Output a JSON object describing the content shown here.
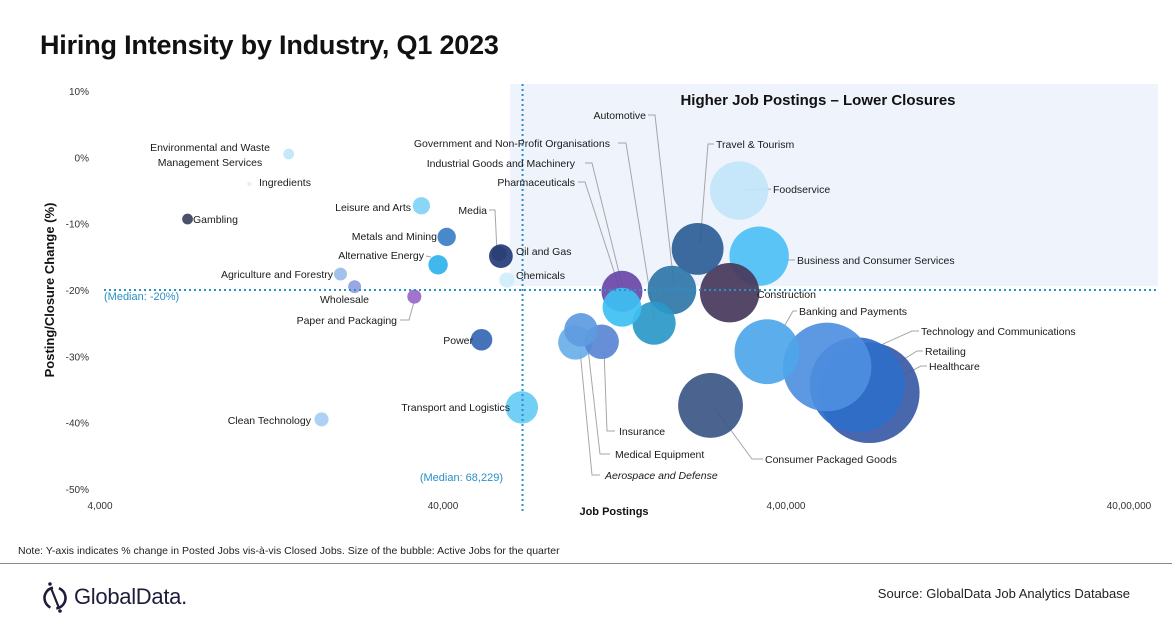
{
  "header": {
    "title": "Hiring Intensity by Industry, Q1 2023"
  },
  "footer": {
    "note": "Note: Y-axis indicates % change in Posted Jobs vis-à-vis Closed Jobs. Size of the bubble: Active Jobs for the quarter",
    "brand": "GlobalData.",
    "source": "Source: GlobalData Job Analytics Database"
  },
  "chart_data": {
    "type": "scatter",
    "subtype": "bubble",
    "title": "Hiring Intensity by Industry, Q1 2023",
    "xlabel": "Job Postings",
    "ylabel": "Posting/Closure Change (%)",
    "x_scale": "log",
    "xlim": [
      4000,
      4000000
    ],
    "ylim": [
      -50,
      10
    ],
    "x_ticks": [
      4000,
      40000,
      400000,
      4000000
    ],
    "x_tick_labels": [
      "4,000",
      "40,000",
      "4,00,000",
      "40,00,000"
    ],
    "y_ticks": [
      10,
      0,
      -10,
      -20,
      -30,
      -40,
      -50
    ],
    "y_tick_labels": [
      "10%",
      "0%",
      "-10%",
      "-20%",
      "-30%",
      "-40%",
      "-50%"
    ],
    "grid": false,
    "medians": {
      "x": 68229,
      "x_label": "(Median: 68,229)",
      "y": -20,
      "y_label": "(Median: -20%)"
    },
    "quadrant_label": "Higher Job Postings – Lower Closures",
    "quadrant": "top-right",
    "size_meaning": "Active Jobs for the quarter",
    "points": [
      {
        "name": "Environmental and Waste Management Services",
        "x": 14200,
        "y": 0.5,
        "size": 1.0,
        "color": "#bfe6fb"
      },
      {
        "name": "Ingredients",
        "x": 10900,
        "y": -4,
        "size": 0.4,
        "color": "#e6eef6"
      },
      {
        "name": "Gambling",
        "x": 7200,
        "y": -9.3,
        "size": 1.0,
        "color": "#3c4160"
      },
      {
        "name": "Leisure and Arts",
        "x": 34600,
        "y": -7.3,
        "size": 1.6,
        "color": "#7fd2f5"
      },
      {
        "name": "Metals and Mining",
        "x": 41000,
        "y": -12,
        "size": 1.7,
        "color": "#3a7fc4"
      },
      {
        "name": "Alternative Energy",
        "x": 38700,
        "y": -16.2,
        "size": 1.8,
        "color": "#2fb2ec"
      },
      {
        "name": "Media",
        "x": 58300,
        "y": -14.5,
        "size": 1.4,
        "color": "#2b3f74"
      },
      {
        "name": "Oil and Gas",
        "x": 59000,
        "y": -14.9,
        "size": 2.2,
        "color": "#243c78"
      },
      {
        "name": "Chemicals",
        "x": 61400,
        "y": -18.5,
        "size": 1.4,
        "color": "#cfeefb"
      },
      {
        "name": "Agriculture and Forestry",
        "x": 20100,
        "y": -17.6,
        "size": 1.2,
        "color": "#9bbce8"
      },
      {
        "name": "Wholesale",
        "x": 22100,
        "y": -19.5,
        "size": 1.2,
        "color": "#8f9fe0"
      },
      {
        "name": "Paper and Packaging",
        "x": 33000,
        "y": -21,
        "size": 1.3,
        "color": "#9a66c9"
      },
      {
        "name": "Power",
        "x": 51800,
        "y": -27.5,
        "size": 2.0,
        "color": "#3467b4"
      },
      {
        "name": "Clean Technology",
        "x": 17700,
        "y": -39.5,
        "size": 1.3,
        "color": "#a7ccf3"
      },
      {
        "name": "Transport and Logistics",
        "x": 67900,
        "y": -37.7,
        "size": 3.0,
        "color": "#66ccf5"
      },
      {
        "name": "Aerospace and Defense",
        "x": 97300,
        "y": -27.9,
        "size": 3.2,
        "color": "#6aaeea"
      },
      {
        "name": "Medical Equipment",
        "x": 101000,
        "y": -26,
        "size": 3.1,
        "color": "#5e9be0"
      },
      {
        "name": "Insurance",
        "x": 116000,
        "y": -27.8,
        "size": 3.2,
        "color": "#5a86d4"
      },
      {
        "name": "Pharmaceuticals",
        "x": 133000,
        "y": -20.2,
        "size": 3.8,
        "color": "#6a47a8"
      },
      {
        "name": "Industrial Goods and Machinery",
        "x": 133000,
        "y": -22.6,
        "size": 3.6,
        "color": "#3dc0f2"
      },
      {
        "name": "Government and Non-Profit Organisations",
        "x": 165000,
        "y": -25,
        "size": 4.0,
        "color": "#2a99c8"
      },
      {
        "name": "Automotive",
        "x": 186000,
        "y": -20,
        "size": 4.5,
        "color": "#2f76a8"
      },
      {
        "name": "Travel & Tourism",
        "x": 221000,
        "y": -13.8,
        "size": 4.8,
        "color": "#2c5d96"
      },
      {
        "name": "Foodservice",
        "x": 292000,
        "y": -5,
        "size": 5.4,
        "color": "#c2e5f8"
      },
      {
        "name": "Business and Consumer Services",
        "x": 334000,
        "y": -14.9,
        "size": 5.5,
        "color": "#4cc0f4"
      },
      {
        "name": "Construction",
        "x": 274000,
        "y": -20.4,
        "size": 5.5,
        "color": "#47375a"
      },
      {
        "name": "Banking and Payments",
        "x": 352000,
        "y": -29.3,
        "size": 6.0,
        "color": "#4ea6ea"
      },
      {
        "name": "Consumer Packaged Goods",
        "x": 241000,
        "y": -37.4,
        "size": 6.0,
        "color": "#3c5785"
      },
      {
        "name": "Technology and Communications",
        "x": 527000,
        "y": -31.6,
        "size": 8.2,
        "color": "#4f8fe0"
      },
      {
        "name": "Retailing",
        "x": 645000,
        "y": -34.3,
        "size": 8.8,
        "color": "#2f6ec9"
      },
      {
        "name": "Healthcare",
        "x": 700000,
        "y": -35.5,
        "size": 9.3,
        "color": "#3a5aa6"
      }
    ]
  }
}
